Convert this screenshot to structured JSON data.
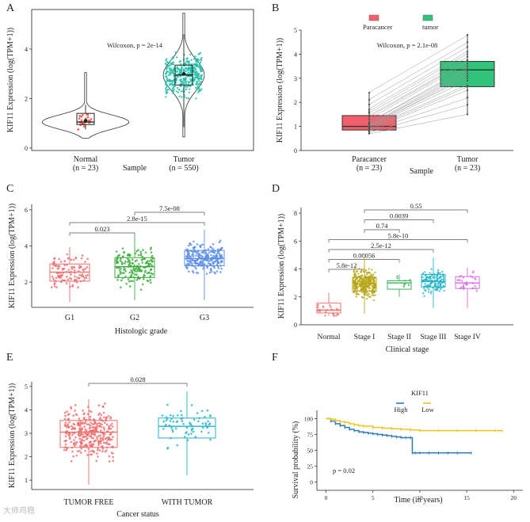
{
  "figure": {
    "watermark": "大师鸡稳"
  },
  "chart_data": [
    {
      "id": "A",
      "type": "violin-box",
      "panel_label": "A",
      "title": "",
      "annotation": "Wilcoxon, p = 2e-14",
      "xlabel": "Sample",
      "ylabel": "KIF11 Expression (log(TPM+1))",
      "ylim": [
        -0.1,
        5.6
      ],
      "yticks": [
        0,
        2,
        4
      ],
      "groups": [
        {
          "name": "Normal",
          "n_label": "(n = 23)",
          "color": "#e84a3f",
          "box": {
            "q1": 0.95,
            "median": 1.05,
            "q3": 1.4,
            "whisker_low": 0.75,
            "whisker_high": 1.75,
            "mean": 1.1
          }
        },
        {
          "name": "Tumor",
          "n_label": "(n = 550)",
          "color": "#19bfa8",
          "box": {
            "q1": 2.55,
            "median": 2.95,
            "q3": 3.35,
            "whisker_low": 0.85,
            "whisker_high": 4.6,
            "mean": 3.0
          }
        }
      ]
    },
    {
      "id": "B",
      "type": "paired-box",
      "panel_label": "B",
      "title": "",
      "annotation": "Wilcoxon, p = 2.1e-08",
      "xlabel": "Sample",
      "ylabel": "KIF11 Expression (log(TPM+1))",
      "ylim": [
        0,
        5
      ],
      "yticks": [
        0,
        1,
        2,
        3,
        4,
        5
      ],
      "legend": [
        {
          "label": "Paracancer",
          "color": "#f1606a"
        },
        {
          "label": "tumor",
          "color": "#30c47a"
        }
      ],
      "legend_position": "top",
      "groups": [
        {
          "name": "Paracancer",
          "n_label": "(n = 23)",
          "color": "#f1606a",
          "box": {
            "q1": 0.85,
            "median": 1.0,
            "q3": 1.45,
            "whisker_low": 0.7,
            "whisker_high": 2.4
          }
        },
        {
          "name": "Tumor",
          "n_label": "(n = 23)",
          "color": "#30c47a",
          "box": {
            "q1": 2.65,
            "median": 3.35,
            "q3": 3.7,
            "whisker_low": 1.5,
            "whisker_high": 4.8
          }
        }
      ],
      "pairs": [
        [
          0.7,
          1.5
        ],
        [
          0.75,
          1.9
        ],
        [
          0.8,
          2.2
        ],
        [
          0.85,
          2.5
        ],
        [
          0.9,
          2.65
        ],
        [
          0.95,
          2.7
        ],
        [
          0.95,
          2.9
        ],
        [
          1.0,
          3.0
        ],
        [
          1.0,
          3.1
        ],
        [
          1.0,
          3.2
        ],
        [
          1.05,
          3.3
        ],
        [
          1.1,
          3.35
        ],
        [
          1.15,
          3.4
        ],
        [
          1.2,
          3.5
        ],
        [
          1.3,
          3.6
        ],
        [
          1.4,
          3.7
        ],
        [
          1.45,
          3.75
        ],
        [
          1.55,
          3.9
        ],
        [
          1.6,
          4.0
        ],
        [
          1.7,
          4.1
        ],
        [
          1.9,
          4.3
        ],
        [
          2.1,
          4.5
        ],
        [
          2.4,
          4.8
        ]
      ]
    },
    {
      "id": "C",
      "type": "box-jitter",
      "panel_label": "C",
      "title": "",
      "xlabel": "Histologic grade",
      "ylabel": "KIF11 Expression (log(TPM+1))",
      "ylim": [
        0.6,
        6.3
      ],
      "yticks": [
        2,
        4,
        6
      ],
      "groups": [
        {
          "name": "G1",
          "color": "#ee6c6c",
          "n": 110,
          "box": {
            "q1": 2.05,
            "median": 2.55,
            "q3": 3.0,
            "whisker_low": 0.9,
            "whisker_high": 3.95
          }
        },
        {
          "name": "G2",
          "color": "#3cab3c",
          "n": 180,
          "box": {
            "q1": 2.25,
            "median": 2.85,
            "q3": 3.35,
            "whisker_low": 1.0,
            "whisker_high": 4.6
          }
        },
        {
          "name": "G3",
          "color": "#5b8ee8",
          "n": 250,
          "box": {
            "q1": 2.9,
            "median": 3.3,
            "q3": 3.75,
            "whisker_low": 1.0,
            "whisker_high": 4.9
          }
        }
      ],
      "comparisons": [
        {
          "from": 0,
          "to": 1,
          "label": "0.023"
        },
        {
          "from": 0,
          "to": 2,
          "label": "2.8e-15"
        },
        {
          "from": 1,
          "to": 2,
          "label": "7.5e-08"
        }
      ]
    },
    {
      "id": "D",
      "type": "box-jitter",
      "panel_label": "D",
      "title": "",
      "xlabel": "Clinical stage",
      "ylabel": "KIF11 Expression (log(TPM+1))",
      "ylim": [
        0,
        8.4
      ],
      "yticks": [
        0,
        2,
        4,
        6,
        8
      ],
      "groups": [
        {
          "name": "Normal",
          "color": "#ee6c6c",
          "n": 23,
          "box": {
            "q1": 0.85,
            "median": 1.05,
            "q3": 1.55,
            "whisker_low": 0.65,
            "whisker_high": 2.3
          }
        },
        {
          "name": "Stage I",
          "color": "#b5a514",
          "n": 300,
          "box": {
            "q1": 2.4,
            "median": 2.95,
            "q3": 3.4,
            "whisker_low": 0.8,
            "whisker_high": 5.0
          }
        },
        {
          "name": "Stage II",
          "color": "#38b25c",
          "n": 8,
          "box": {
            "q1": 2.55,
            "median": 3.0,
            "q3": 3.15,
            "whisker_low": 2.0,
            "whisker_high": 3.6
          }
        },
        {
          "name": "Stage III",
          "color": "#21b3c4",
          "n": 130,
          "box": {
            "q1": 2.7,
            "median": 3.1,
            "q3": 3.6,
            "whisker_low": 1.2,
            "whisker_high": 4.8
          }
        },
        {
          "name": "Stage IV",
          "color": "#d86ce3",
          "n": 30,
          "box": {
            "q1": 2.6,
            "median": 3.0,
            "q3": 3.45,
            "whisker_low": 1.2,
            "whisker_high": 4.1
          }
        }
      ],
      "comparisons": [
        {
          "from": 1,
          "to": 4,
          "label": "0.55"
        },
        {
          "from": 1,
          "to": 3,
          "label": "0.0039"
        },
        {
          "from": 1,
          "to": 2,
          "label": "0.74"
        },
        {
          "from": 0,
          "to": 4,
          "label": "5.8e-10"
        },
        {
          "from": 0,
          "to": 3,
          "label": "2.5e-12"
        },
        {
          "from": 0,
          "to": 2,
          "label": "0.00056"
        },
        {
          "from": 0,
          "to": 1,
          "label": "5.8e-12"
        }
      ]
    },
    {
      "id": "E",
      "type": "box-jitter",
      "panel_label": "E",
      "title": "",
      "xlabel": "Cancer status",
      "ylabel": "KIF11 Expression (log(TPM+1))",
      "ylim": [
        0.6,
        5.2
      ],
      "yticks": [
        1,
        2,
        3,
        4,
        5
      ],
      "groups": [
        {
          "name": "TUMOR FREE",
          "color": "#ee6c6c",
          "n": 340,
          "box": {
            "q1": 2.4,
            "median": 3.05,
            "q3": 3.55,
            "whisker_low": 0.8,
            "whisker_high": 4.45
          }
        },
        {
          "name": "WITH TUMOR",
          "color": "#21b3c4",
          "n": 70,
          "box": {
            "q1": 2.8,
            "median": 3.3,
            "q3": 3.65,
            "whisker_low": 1.2,
            "whisker_high": 4.8
          }
        }
      ],
      "comparisons": [
        {
          "from": 0,
          "to": 1,
          "label": "0.028"
        }
      ]
    },
    {
      "id": "F",
      "type": "line",
      "subtype": "kaplan-meier",
      "panel_label": "F",
      "title": "",
      "annotation": "p = 0.02",
      "xlabel": "Time (in years)",
      "ylabel": "Survival probability (%)",
      "xlim": [
        -0.3,
        21.5
      ],
      "ylim": [
        -8,
        108
      ],
      "xticks": [
        0,
        5,
        10,
        15,
        20
      ],
      "yticks": [
        0,
        25,
        50,
        75,
        100
      ],
      "legend_title": "KIF11",
      "legend_position": "top",
      "series": [
        {
          "name": "High",
          "color": "#2b7bba",
          "x": [
            0,
            0.5,
            1,
            1.5,
            2,
            2.5,
            3,
            3.5,
            4,
            4.5,
            5,
            5.5,
            6,
            6.5,
            7,
            7.5,
            8,
            8.5,
            9,
            9.2,
            9.5,
            10,
            11,
            12,
            13,
            14,
            15.5
          ],
          "y": [
            100,
            96,
            92,
            89,
            86,
            83,
            81,
            79,
            78,
            77,
            76,
            75,
            74,
            73,
            72,
            71,
            70,
            70,
            70,
            46,
            46,
            46,
            46,
            46,
            46,
            46,
            46
          ]
        },
        {
          "name": "Low",
          "color": "#f0c419",
          "x": [
            0,
            0.5,
            1,
            1.5,
            2,
            2.5,
            3,
            3.5,
            4,
            5,
            6,
            7,
            8,
            9,
            10,
            12,
            14,
            16,
            18,
            18.8
          ],
          "y": [
            100,
            99,
            97,
            95,
            94,
            92,
            90,
            89,
            88,
            86,
            85,
            84,
            83,
            82,
            81,
            81,
            81,
            81,
            81,
            81
          ]
        }
      ]
    }
  ]
}
